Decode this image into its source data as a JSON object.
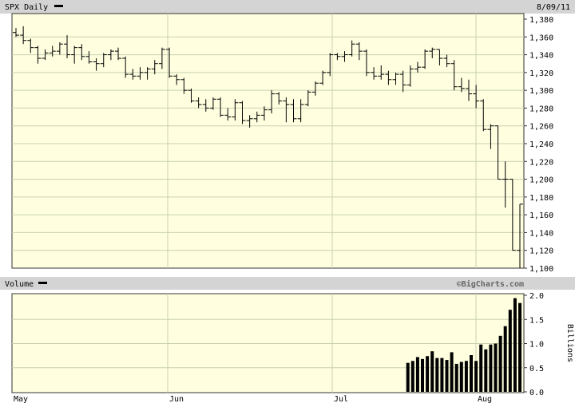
{
  "chart_data": [
    {
      "type": "ohlc",
      "title": "SPX Daily",
      "date_label": "8/09/11",
      "ylim": [
        1100,
        1380
      ],
      "yticks": [
        1380,
        1360,
        1340,
        1320,
        1300,
        1280,
        1260,
        1240,
        1220,
        1200,
        1180,
        1160,
        1140,
        1120,
        1100
      ],
      "ytick_labels": [
        "1,380",
        "1,360",
        "1,340",
        "1,320",
        "1,300",
        "1,280",
        "1,260",
        "1,240",
        "1,220",
        "1,200",
        "1,180",
        "1,160",
        "1,140",
        "1,120",
        "1,100"
      ],
      "grid": true,
      "month_labels": [
        "May",
        "Jun",
        "Jul",
        "Aug"
      ],
      "x": [
        "05-02",
        "05-03",
        "05-04",
        "05-05",
        "05-06",
        "05-09",
        "05-10",
        "05-11",
        "05-12",
        "05-13",
        "05-16",
        "05-17",
        "05-18",
        "05-19",
        "05-20",
        "05-23",
        "05-24",
        "05-25",
        "05-26",
        "05-27",
        "05-31",
        "06-01",
        "06-02",
        "06-03",
        "06-06",
        "06-07",
        "06-08",
        "06-09",
        "06-10",
        "06-13",
        "06-14",
        "06-15",
        "06-16",
        "06-17",
        "06-20",
        "06-21",
        "06-22",
        "06-23",
        "06-24",
        "06-27",
        "06-28",
        "06-29",
        "06-30",
        "07-01",
        "07-05",
        "07-06",
        "07-07",
        "07-08",
        "07-11",
        "07-12",
        "07-13",
        "07-14",
        "07-15",
        "07-18",
        "07-19",
        "07-20",
        "07-21",
        "07-22",
        "07-25",
        "07-26",
        "07-27",
        "07-28",
        "07-29",
        "08-01",
        "08-02",
        "08-03",
        "08-04",
        "08-05",
        "08-08",
        "08-09"
      ],
      "ohlc": [
        [
          1365,
          1370,
          1360,
          1362
        ],
        [
          1362,
          1372,
          1352,
          1356
        ],
        [
          1356,
          1358,
          1342,
          1348
        ],
        [
          1348,
          1350,
          1330,
          1336
        ],
        [
          1336,
          1346,
          1334,
          1342
        ],
        [
          1342,
          1350,
          1338,
          1344
        ],
        [
          1344,
          1354,
          1340,
          1352
        ],
        [
          1352,
          1362,
          1336,
          1340
        ],
        [
          1340,
          1350,
          1330,
          1348
        ],
        [
          1348,
          1352,
          1334,
          1338
        ],
        [
          1338,
          1344,
          1330,
          1332
        ],
        [
          1332,
          1336,
          1322,
          1330
        ],
        [
          1330,
          1342,
          1326,
          1340
        ],
        [
          1340,
          1346,
          1334,
          1344
        ],
        [
          1344,
          1348,
          1334,
          1336
        ],
        [
          1336,
          1338,
          1314,
          1318
        ],
        [
          1318,
          1324,
          1312,
          1316
        ],
        [
          1316,
          1326,
          1312,
          1320
        ],
        [
          1320,
          1326,
          1312,
          1324
        ],
        [
          1324,
          1334,
          1318,
          1330
        ],
        [
          1330,
          1348,
          1324,
          1346
        ],
        [
          1346,
          1348,
          1314,
          1316
        ],
        [
          1316,
          1318,
          1306,
          1312
        ],
        [
          1312,
          1314,
          1296,
          1300
        ],
        [
          1300,
          1302,
          1286,
          1288
        ],
        [
          1288,
          1292,
          1280,
          1284
        ],
        [
          1284,
          1290,
          1276,
          1280
        ],
        [
          1280,
          1292,
          1278,
          1290
        ],
        [
          1290,
          1292,
          1270,
          1272
        ],
        [
          1272,
          1280,
          1266,
          1270
        ],
        [
          1270,
          1290,
          1266,
          1286
        ],
        [
          1286,
          1288,
          1262,
          1266
        ],
        [
          1266,
          1272,
          1258,
          1268
        ],
        [
          1268,
          1276,
          1264,
          1272
        ],
        [
          1272,
          1282,
          1266,
          1278
        ],
        [
          1278,
          1300,
          1274,
          1296
        ],
        [
          1296,
          1298,
          1284,
          1288
        ],
        [
          1288,
          1292,
          1264,
          1284
        ],
        [
          1284,
          1290,
          1264,
          1268
        ],
        [
          1268,
          1290,
          1264,
          1284
        ],
        [
          1284,
          1300,
          1282,
          1298
        ],
        [
          1298,
          1310,
          1294,
          1308
        ],
        [
          1308,
          1322,
          1306,
          1320
        ],
        [
          1320,
          1342,
          1316,
          1340
        ],
        [
          1340,
          1342,
          1334,
          1338
        ],
        [
          1338,
          1344,
          1332,
          1340
        ],
        [
          1340,
          1356,
          1338,
          1352
        ],
        [
          1352,
          1354,
          1334,
          1344
        ],
        [
          1344,
          1346,
          1316,
          1320
        ],
        [
          1320,
          1326,
          1312,
          1316
        ],
        [
          1316,
          1328,
          1312,
          1318
        ],
        [
          1318,
          1322,
          1306,
          1312
        ],
        [
          1312,
          1320,
          1306,
          1318
        ],
        [
          1318,
          1322,
          1298,
          1306
        ],
        [
          1306,
          1328,
          1304,
          1324
        ],
        [
          1324,
          1332,
          1320,
          1326
        ],
        [
          1326,
          1346,
          1324,
          1344
        ],
        [
          1344,
          1348,
          1336,
          1346
        ],
        [
          1346,
          1346,
          1328,
          1336
        ],
        [
          1336,
          1340,
          1326,
          1330
        ],
        [
          1330,
          1334,
          1300,
          1304
        ],
        [
          1304,
          1314,
          1298,
          1302
        ],
        [
          1302,
          1312,
          1288,
          1296
        ],
        [
          1296,
          1306,
          1280,
          1288
        ],
        [
          1288,
          1290,
          1254,
          1256
        ],
        [
          1256,
          1262,
          1234,
          1260
        ],
        [
          1260,
          1260,
          1200,
          1200
        ],
        [
          1200,
          1220,
          1168,
          1200
        ],
        [
          1200,
          1200,
          1120,
          1120
        ],
        [
          1120,
          1172,
          1100,
          1172
        ]
      ]
    },
    {
      "type": "bar",
      "title": "Volume",
      "credit": "©BigCharts.com",
      "ylabel": "Billions",
      "ylim": [
        0,
        2.0
      ],
      "yticks": [
        0,
        0.5,
        1.0,
        1.5,
        2.0
      ],
      "ytick_labels": [
        "0.0",
        "0.5",
        "1.0",
        "1.5",
        "2.0"
      ],
      "month_labels": [
        "May",
        "Jun",
        "Jul",
        "Aug"
      ],
      "values": [
        0.6,
        0.64,
        0.72,
        0.68,
        0.74,
        0.84,
        0.7,
        0.7,
        0.66,
        0.82,
        0.58,
        0.62,
        0.64,
        0.76,
        0.64,
        0.98,
        0.88,
        0.98,
        1.0,
        1.16,
        1.36,
        1.7,
        1.94,
        1.84
      ]
    }
  ]
}
